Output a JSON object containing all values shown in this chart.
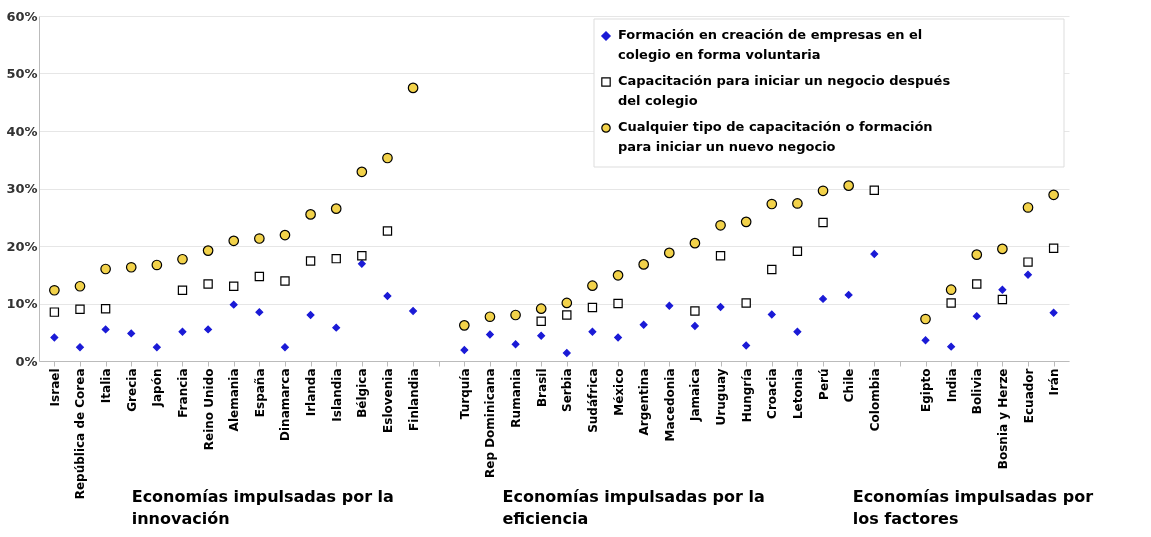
{
  "chart_data": {
    "type": "scatter",
    "categories": [
      "Israel",
      "República de Corea",
      "Italia",
      "Grecia",
      "Japón",
      "Francia",
      "Reino Unido",
      "Alemania",
      "España",
      "Dinamarca",
      "Irlanda",
      "Islandia",
      "Bélgica",
      "Eslovenia",
      "Finlandia",
      null,
      "Turquía",
      "Rep Dominicana",
      "Rumania",
      "Brasil",
      "Serbia",
      "Sudáfrica",
      "México",
      "Argentina",
      "Macedonia",
      "Jamaica",
      "Uruguay",
      "Hungría",
      "Croacia",
      "Letonia",
      "Perú",
      "Chile",
      "Colombia",
      null,
      "Egipto",
      "India",
      "Bolivia",
      "Bosnia y Herze",
      "Ecuador",
      "Irán"
    ],
    "series": [
      {
        "name": "Formación en creación de empresas en el colegio en forma voluntaria",
        "color": "#1a1ad6",
        "marker": "diamond",
        "values": [
          4.1,
          2.4,
          5.5,
          4.8,
          2.4,
          5.1,
          5.5,
          9.8,
          8.5,
          2.4,
          8.0,
          5.8,
          16.9,
          11.3,
          8.7,
          null,
          1.9,
          4.6,
          2.9,
          4.4,
          1.4,
          5.1,
          4.1,
          6.3,
          9.6,
          6.1,
          9.4,
          2.7,
          8.1,
          5.1,
          10.8,
          11.5,
          18.6,
          null,
          3.6,
          2.5,
          7.8,
          12.4,
          15.0,
          8.4
        ]
      },
      {
        "name": "Capacitación para iniciar un negocio después del colegio",
        "color": "#ffffff",
        "marker": "square",
        "values": [
          8.5,
          9.0,
          9.1,
          null,
          null,
          12.3,
          13.4,
          13.0,
          14.7,
          13.9,
          17.4,
          17.8,
          18.3,
          22.6,
          null,
          null,
          null,
          null,
          null,
          6.9,
          8.0,
          9.3,
          10.0,
          null,
          null,
          8.7,
          18.3,
          10.1,
          15.9,
          19.1,
          24.1,
          null,
          29.7,
          null,
          null,
          10.1,
          13.4,
          10.7,
          17.2,
          19.6
        ]
      },
      {
        "name": "Cualquier tipo de capacitación o formación para iniciar un nuevo negocio",
        "color": "#f2d24a",
        "marker": "circle",
        "values": [
          12.3,
          13.0,
          16.0,
          16.3,
          16.7,
          17.7,
          19.2,
          20.9,
          21.3,
          21.9,
          25.5,
          26.5,
          32.9,
          35.3,
          47.5,
          null,
          6.2,
          7.7,
          8.0,
          9.1,
          10.1,
          13.1,
          14.9,
          16.8,
          18.8,
          20.5,
          23.6,
          24.2,
          27.3,
          27.4,
          29.6,
          30.5,
          null,
          null,
          7.3,
          12.4,
          18.5,
          19.5,
          26.7,
          28.9
        ]
      }
    ],
    "ylim": [
      0,
      60
    ],
    "yticks": [
      {
        "value": 0,
        "label": "0%"
      },
      {
        "value": 10,
        "label": "10%"
      },
      {
        "value": 20,
        "label": "20%"
      },
      {
        "value": 30,
        "label": "30%"
      },
      {
        "value": 40,
        "label": "40%"
      },
      {
        "value": 50,
        "label": "50%"
      },
      {
        "value": 60,
        "label": "60%"
      }
    ],
    "grid": "y",
    "legend": "top right",
    "annotations": [
      "Economías impulsadas por la innovación",
      "Economías impulsadas por la eficiencia",
      "Economías impulsadas por los factores"
    ]
  }
}
